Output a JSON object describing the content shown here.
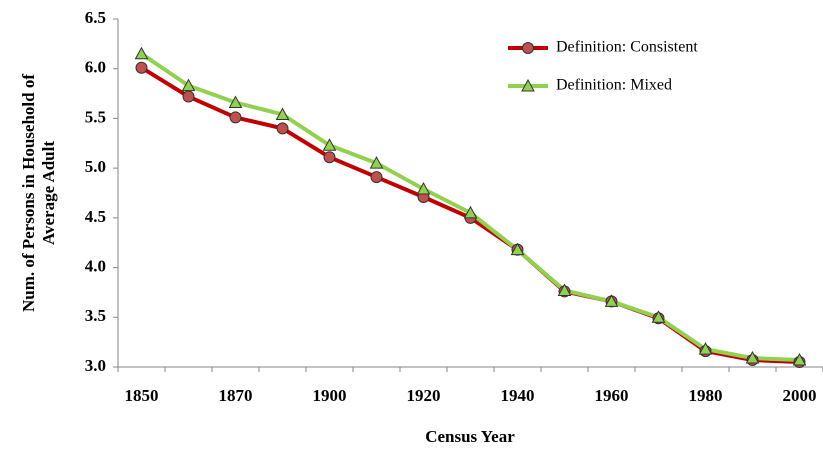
{
  "chart_data": {
    "type": "line",
    "categories": [
      "1850",
      null,
      "1870",
      null,
      "1900",
      null,
      "1920",
      null,
      "1940",
      null,
      "1960",
      null,
      "1980",
      null,
      "2000"
    ],
    "series": [
      {
        "name": "Definition: Consistent",
        "color": "#c00000",
        "marker_color": "#c0504d",
        "marker": "circle",
        "values": [
          6.01,
          5.72,
          5.51,
          5.4,
          5.11,
          4.91,
          4.71,
          4.5,
          4.18,
          3.76,
          3.66,
          3.49,
          3.16,
          3.07,
          3.05
        ]
      },
      {
        "name": "Definition: Mixed",
        "color": "#92d050",
        "marker_color": "#92d050",
        "marker": "triangle",
        "values": [
          6.15,
          5.83,
          5.66,
          5.54,
          5.23,
          5.05,
          4.79,
          4.55,
          4.18,
          3.77,
          3.66,
          3.5,
          3.18,
          3.09,
          3.07
        ]
      }
    ],
    "xlabel": "Census Year",
    "ylabel": [
      "Num. of Persons in Household of",
      "Average Adult"
    ],
    "ylim": [
      3,
      6.5
    ],
    "yticks": [
      {
        "value": 3,
        "label": "3.0"
      },
      3.5,
      {
        "value": 4,
        "label": "4.0"
      },
      4.5,
      {
        "value": 5,
        "label": "5.0"
      },
      5.5,
      {
        "value": 6,
        "label": "6.0"
      },
      6.5
    ],
    "grid": false,
    "legend": "upper right"
  }
}
